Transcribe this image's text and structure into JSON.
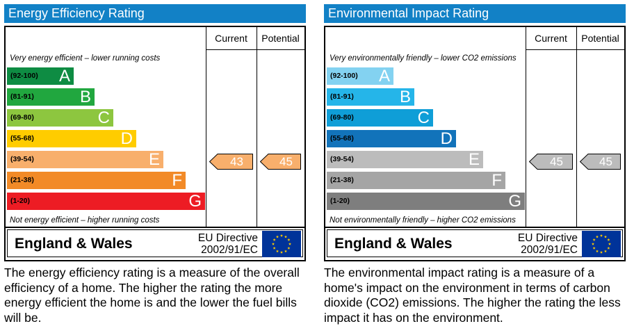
{
  "chart_data": [
    {
      "type": "bar",
      "title": "Energy Efficiency Rating",
      "column_headers": [
        "Current",
        "Potential"
      ],
      "top_caption": "Very energy efficient – lower running costs",
      "bottom_caption": "Not energy efficient – higher running costs",
      "bands": [
        {
          "range": "(92-100)",
          "letter": "A",
          "color": "#0e8c43"
        },
        {
          "range": "(81-91)",
          "letter": "B",
          "color": "#21a73f"
        },
        {
          "range": "(69-80)",
          "letter": "C",
          "color": "#8dc63f"
        },
        {
          "range": "(55-68)",
          "letter": "D",
          "color": "#ffcc00"
        },
        {
          "range": "(39-54)",
          "letter": "E",
          "color": "#f8af6c"
        },
        {
          "range": "(21-38)",
          "letter": "F",
          "color": "#f28a27"
        },
        {
          "range": "(1-20)",
          "letter": "G",
          "color": "#ed1c24"
        }
      ],
      "current": {
        "value": "43",
        "band": "E",
        "color": "#f8af6c"
      },
      "potential": {
        "value": "45",
        "band": "E",
        "color": "#f8af6c"
      },
      "title_bar_color": "#1281c6",
      "region": "England & Wales",
      "directive_line1": "EU Directive",
      "directive_line2": "2002/91/EC",
      "description": "The energy efficiency rating is a measure of the overall efficiency of a home.  The higher the rating the more energy efficient the home is and the lower the fuel bills will be."
    },
    {
      "type": "bar",
      "title": "Environmental Impact Rating",
      "column_headers": [
        "Current",
        "Potential"
      ],
      "top_caption": "Very environmentally friendly – lower CO2 emissions",
      "bottom_caption": "Not environmentally friendly – higher CO2 emissions",
      "bands": [
        {
          "range": "(92-100)",
          "letter": "A",
          "color": "#83d2f1"
        },
        {
          "range": "(81-91)",
          "letter": "B",
          "color": "#25b5e9"
        },
        {
          "range": "(69-80)",
          "letter": "C",
          "color": "#0f9ed7"
        },
        {
          "range": "(55-68)",
          "letter": "D",
          "color": "#1273ba"
        },
        {
          "range": "(39-54)",
          "letter": "E",
          "color": "#bcbcbc"
        },
        {
          "range": "(21-38)",
          "letter": "F",
          "color": "#a5a5a5"
        },
        {
          "range": "(1-20)",
          "letter": "G",
          "color": "#7e7e7e"
        }
      ],
      "current": {
        "value": "45",
        "band": "E",
        "color": "#bcbcbc"
      },
      "potential": {
        "value": "45",
        "band": "E",
        "color": "#bcbcbc"
      },
      "title_bar_color": "#1281c6",
      "region": "England & Wales",
      "directive_line1": "EU Directive",
      "directive_line2": "2002/91/EC",
      "description": "The environmental impact rating is a measure of a home's impact on the environment in terms of carbon dioxide (CO2) emissions.  The higher the rating the less impact it has on the environment."
    }
  ],
  "colors": {
    "eu_flag_blue": "#003399",
    "eu_flag_stars": "#ffcc00"
  }
}
